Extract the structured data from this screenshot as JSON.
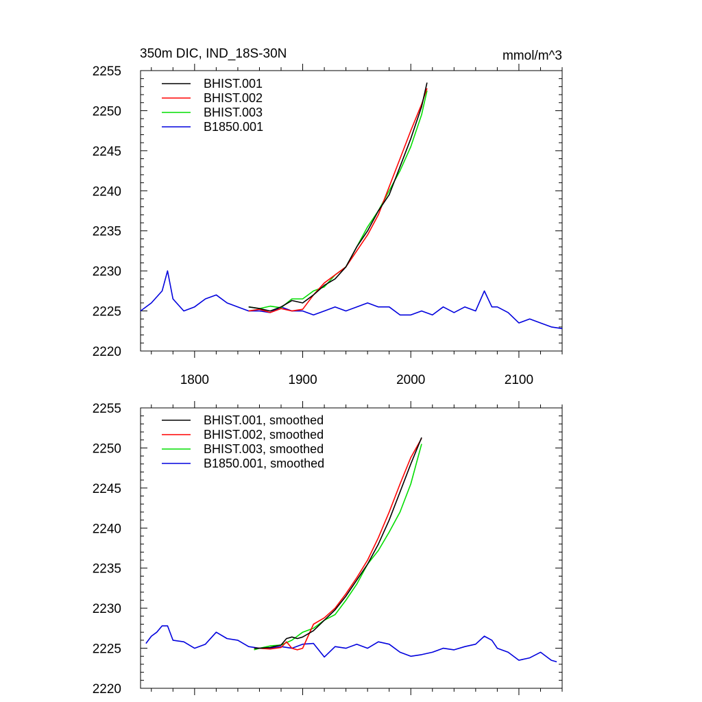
{
  "header": {
    "title": "350m DIC, IND_18S-30N",
    "units": "mmol/m^3"
  },
  "chart_data": [
    {
      "type": "line",
      "panel": "top",
      "xlim": [
        1750,
        2140
      ],
      "ylim": [
        2220,
        2255
      ],
      "x_ticks": [
        1800,
        1900,
        2000,
        2100
      ],
      "y_ticks": [
        2220,
        2225,
        2230,
        2235,
        2240,
        2245,
        2250,
        2255
      ],
      "x_tick_labels_visible": true,
      "legend_position": "top-left",
      "grid": false,
      "series": [
        {
          "name": "BHIST.001",
          "color": "#000000",
          "x": [
            1850,
            1860,
            1870,
            1880,
            1890,
            1900,
            1910,
            1920,
            1930,
            1940,
            1950,
            1960,
            1970,
            1980,
            1990,
            2000,
            2010,
            2015
          ],
          "y": [
            2225.5,
            2225.3,
            2225.0,
            2225.5,
            2226.3,
            2226.0,
            2227.0,
            2228.2,
            2229.0,
            2230.5,
            2233.0,
            2235.0,
            2237.5,
            2239.5,
            2243.0,
            2246.5,
            2250.5,
            2253.5
          ]
        },
        {
          "name": "BHIST.002",
          "color": "#ff0000",
          "x": [
            1850,
            1860,
            1870,
            1880,
            1890,
            1900,
            1910,
            1920,
            1930,
            1940,
            1950,
            1960,
            1970,
            1980,
            1990,
            2000,
            2010,
            2015
          ],
          "y": [
            2225.0,
            2225.2,
            2224.8,
            2225.3,
            2225.0,
            2225.2,
            2227.0,
            2228.5,
            2229.5,
            2230.5,
            2232.5,
            2234.5,
            2237.0,
            2240.5,
            2244.0,
            2247.5,
            2250.8,
            2252.8
          ]
        },
        {
          "name": "BHIST.003",
          "color": "#00dd00",
          "x": [
            1850,
            1860,
            1870,
            1880,
            1890,
            1900,
            1910,
            1920,
            1930,
            1940,
            1950,
            1960,
            1970,
            1980,
            1990,
            2000,
            2010,
            2015
          ],
          "y": [
            2225.5,
            2225.3,
            2225.6,
            2225.4,
            2226.5,
            2226.5,
            2227.5,
            2228.0,
            2229.5,
            2230.5,
            2233.0,
            2235.5,
            2237.5,
            2240.0,
            2242.5,
            2245.5,
            2249.5,
            2252.5
          ]
        },
        {
          "name": "B1850.001",
          "color": "#0000dd",
          "x": [
            1750,
            1760,
            1770,
            1775,
            1780,
            1790,
            1800,
            1810,
            1820,
            1830,
            1840,
            1850,
            1860,
            1870,
            1880,
            1890,
            1900,
            1910,
            1920,
            1930,
            1940,
            1950,
            1960,
            1970,
            1980,
            1990,
            2000,
            2010,
            2020,
            2030,
            2040,
            2050,
            2060,
            2068,
            2075,
            2080,
            2090,
            2100,
            2110,
            2120,
            2130,
            2140
          ],
          "y": [
            2225.0,
            2226.0,
            2227.5,
            2230.0,
            2226.5,
            2225.0,
            2225.5,
            2226.5,
            2227.0,
            2226.0,
            2225.5,
            2225.0,
            2225.0,
            2224.8,
            2225.5,
            2225.0,
            2225.0,
            2224.5,
            2225.0,
            2225.5,
            2225.0,
            2225.5,
            2226.0,
            2225.5,
            2225.5,
            2224.5,
            2224.5,
            2225.0,
            2224.5,
            2225.5,
            2224.8,
            2225.5,
            2225.0,
            2227.5,
            2225.5,
            2225.5,
            2224.8,
            2223.5,
            2224.0,
            2223.5,
            2223.0,
            2222.8
          ]
        }
      ]
    },
    {
      "type": "line",
      "panel": "bottom",
      "xlim": [
        1750,
        2140
      ],
      "ylim": [
        2220,
        2255
      ],
      "x_ticks": [
        1800,
        1900,
        2000,
        2100
      ],
      "y_ticks": [
        2220,
        2225,
        2230,
        2235,
        2240,
        2245,
        2250,
        2255
      ],
      "x_tick_labels_visible": false,
      "legend_position": "top-left",
      "grid": false,
      "series": [
        {
          "name": "BHIST.001, smoothed",
          "color": "#000000",
          "x": [
            1855,
            1860,
            1870,
            1880,
            1885,
            1890,
            1895,
            1900,
            1910,
            1920,
            1930,
            1940,
            1950,
            1960,
            1970,
            1980,
            1990,
            2000,
            2010
          ],
          "y": [
            2225.0,
            2225.0,
            2225.1,
            2225.4,
            2226.2,
            2226.4,
            2226.2,
            2226.4,
            2227.2,
            2228.5,
            2229.8,
            2231.5,
            2233.5,
            2235.5,
            2238.0,
            2241.0,
            2244.5,
            2248.0,
            2251.3
          ]
        },
        {
          "name": "BHIST.002, smoothed",
          "color": "#ff0000",
          "x": [
            1855,
            1860,
            1870,
            1880,
            1885,
            1890,
            1895,
            1900,
            1905,
            1910,
            1920,
            1930,
            1940,
            1950,
            1960,
            1970,
            1980,
            1990,
            2000,
            2010
          ],
          "y": [
            2225.0,
            2225.0,
            2224.9,
            2225.1,
            2225.8,
            2225.0,
            2224.8,
            2225.0,
            2226.5,
            2228.0,
            2228.8,
            2230.0,
            2231.8,
            2233.8,
            2236.0,
            2238.8,
            2242.0,
            2245.5,
            2248.8,
            2251.2
          ]
        },
        {
          "name": "BHIST.003, smoothed",
          "color": "#00dd00",
          "x": [
            1855,
            1860,
            1870,
            1880,
            1890,
            1900,
            1910,
            1920,
            1930,
            1940,
            1950,
            1960,
            1970,
            1980,
            1990,
            2000,
            2010
          ],
          "y": [
            2224.8,
            2225.0,
            2225.3,
            2225.4,
            2226.0,
            2227.0,
            2227.5,
            2228.5,
            2229.2,
            2231.0,
            2233.0,
            2235.5,
            2237.2,
            2239.5,
            2242.0,
            2245.5,
            2250.5
          ]
        },
        {
          "name": "B1850.001, smoothed",
          "color": "#0000dd",
          "x": [
            1755,
            1760,
            1765,
            1770,
            1775,
            1780,
            1790,
            1800,
            1810,
            1820,
            1830,
            1840,
            1850,
            1860,
            1870,
            1880,
            1890,
            1900,
            1910,
            1920,
            1930,
            1940,
            1950,
            1960,
            1970,
            1980,
            1990,
            2000,
            2010,
            2020,
            2030,
            2040,
            2050,
            2060,
            2068,
            2075,
            2080,
            2090,
            2100,
            2110,
            2120,
            2130,
            2135
          ],
          "y": [
            2225.6,
            2226.5,
            2227.0,
            2227.8,
            2227.8,
            2226.0,
            2225.8,
            2225.0,
            2225.5,
            2227.0,
            2226.2,
            2226.0,
            2225.2,
            2225.0,
            2225.0,
            2225.2,
            2225.0,
            2225.5,
            2225.6,
            2223.9,
            2225.2,
            2225.0,
            2225.5,
            2225.0,
            2225.8,
            2225.5,
            2224.5,
            2224.0,
            2224.2,
            2224.5,
            2225.0,
            2224.8,
            2225.2,
            2225.5,
            2226.5,
            2226.0,
            2225.0,
            2224.5,
            2223.5,
            2223.8,
            2224.5,
            2223.5,
            2223.3
          ]
        }
      ]
    }
  ]
}
